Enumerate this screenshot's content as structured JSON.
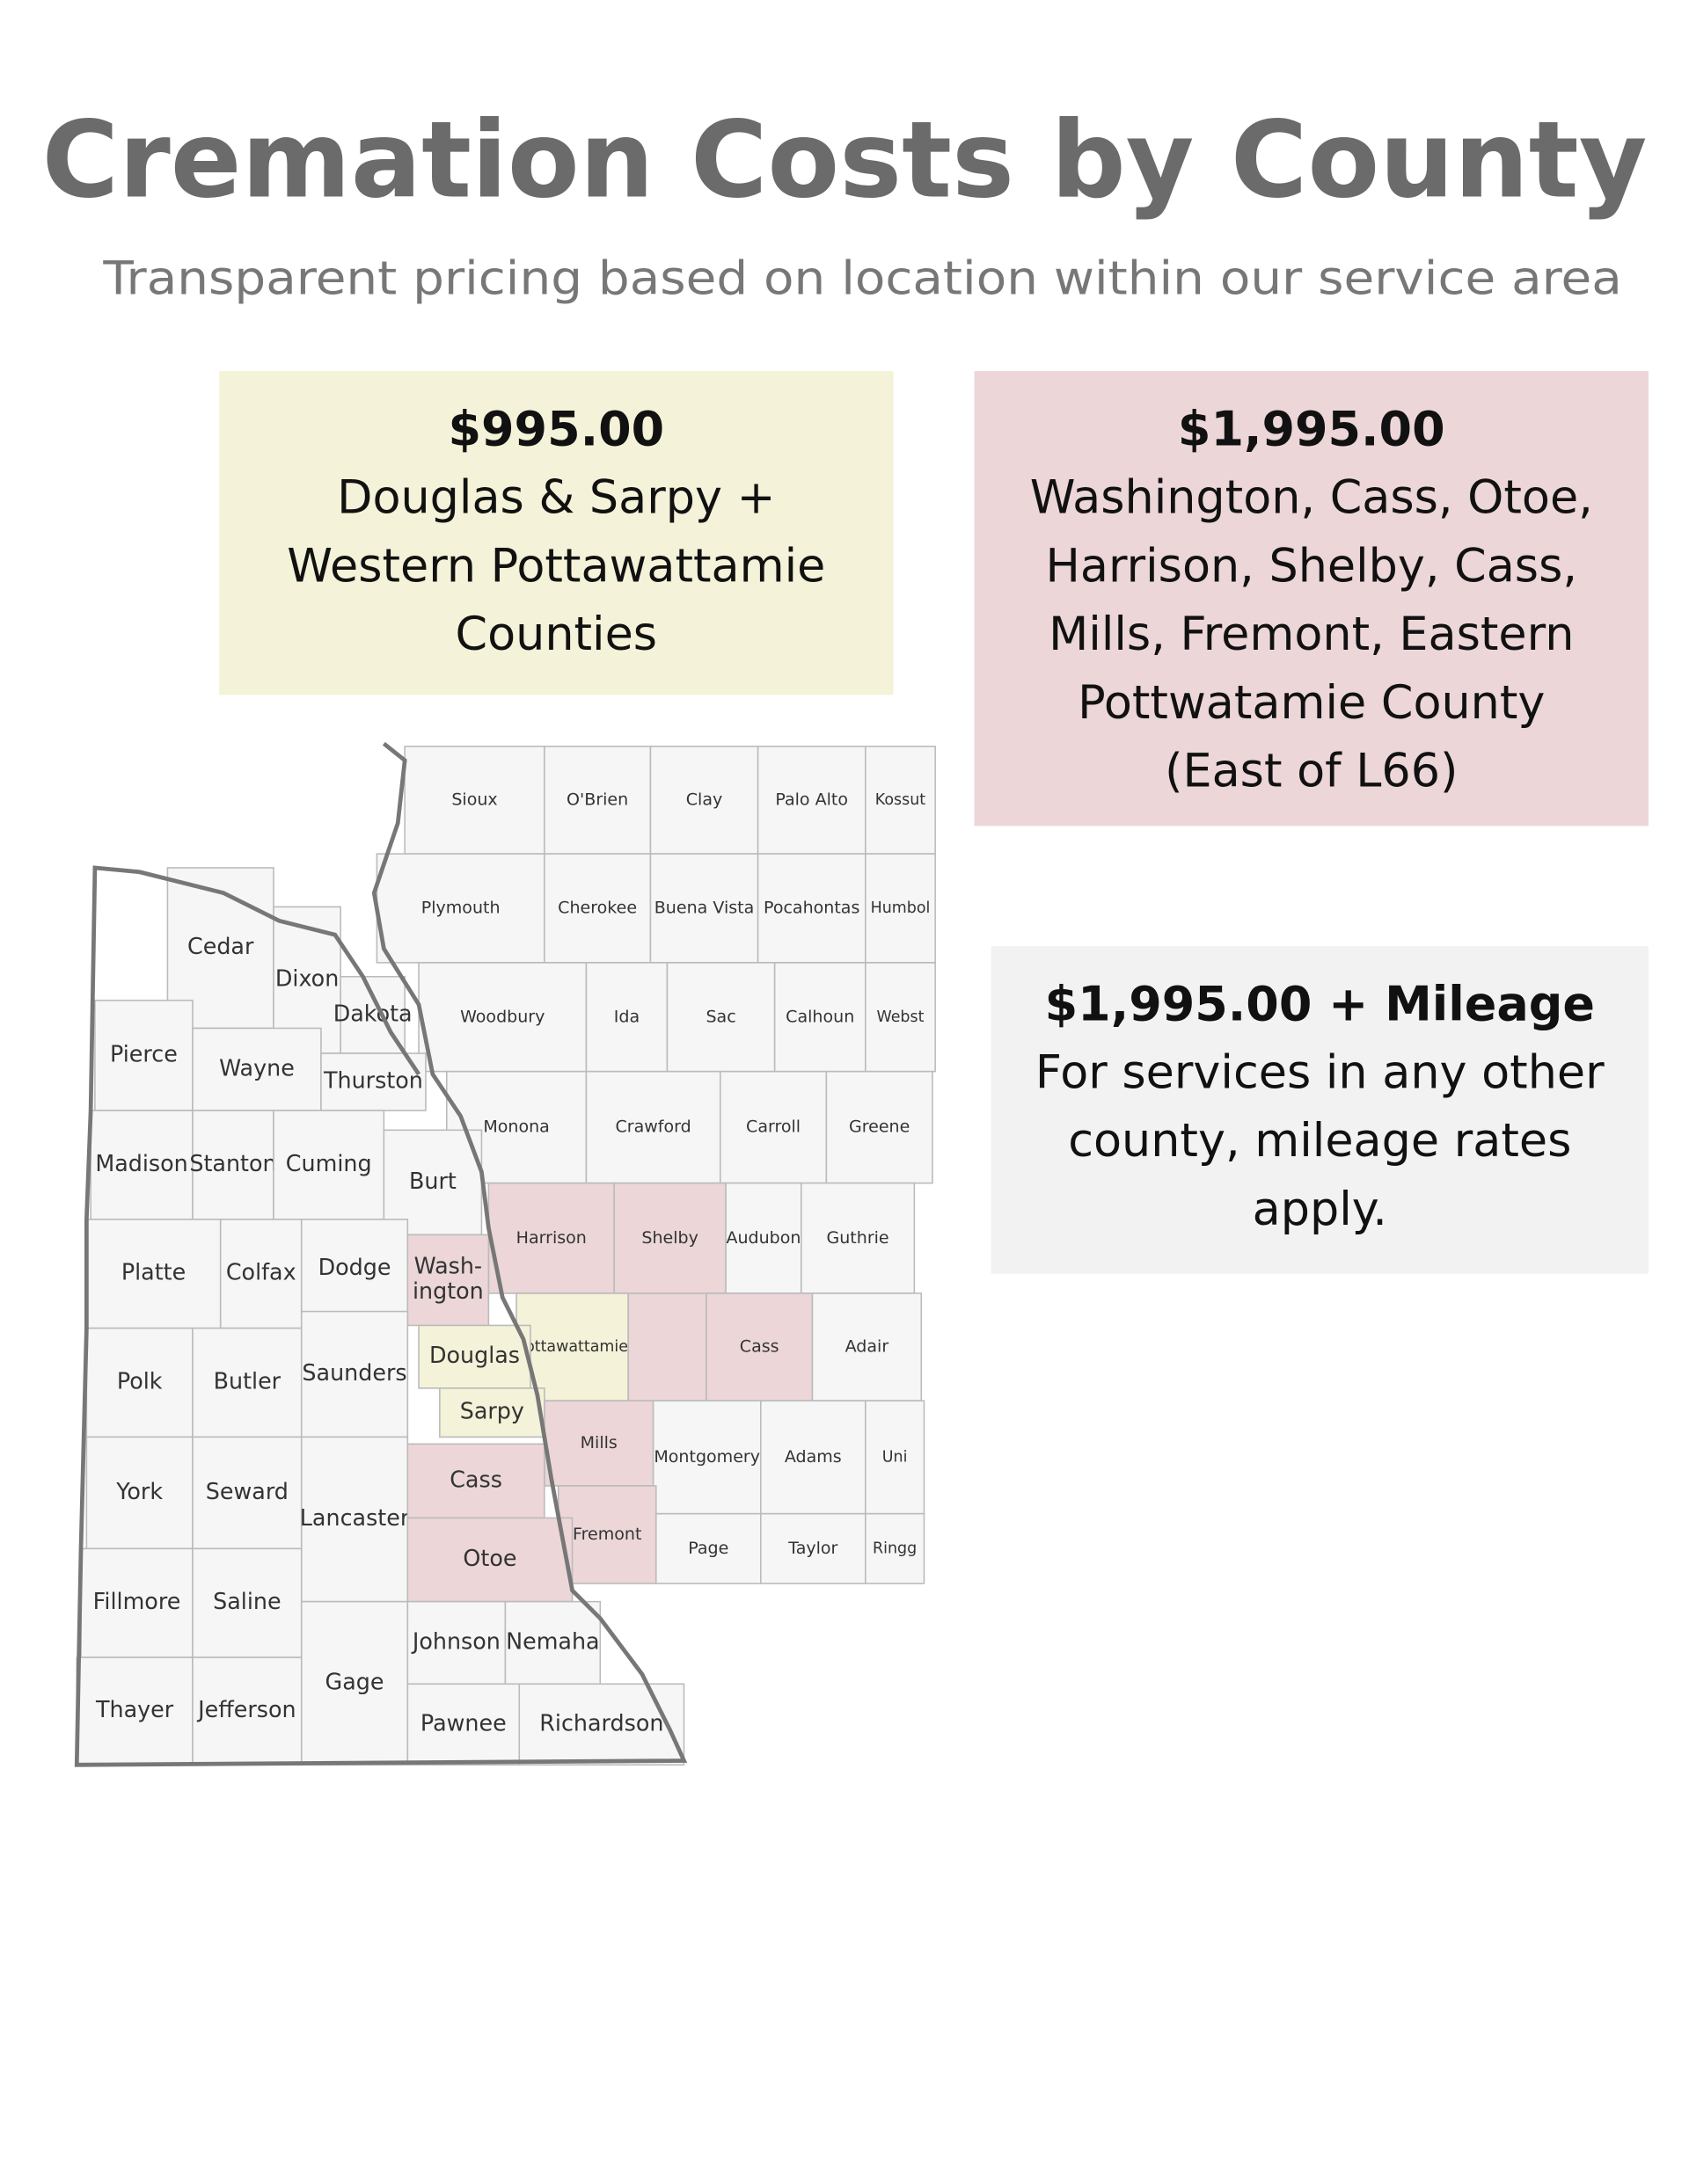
{
  "header": {
    "title": "Cremation Costs by County",
    "subtitle": "Transparent pricing based on location within our service area"
  },
  "price_boxes": [
    {
      "price": "$995.00",
      "lines": [
        "Douglas & Sarpy +",
        "Western Pottawattamie",
        "Counties"
      ],
      "color": "#f4f2d8"
    },
    {
      "price": "$1,995.00",
      "lines": [
        "Washington, Cass, Otoe,",
        "Harrison, Shelby, Cass,",
        "Mills, Fremont, Eastern",
        "Pottwatamie County",
        "(East of L66)"
      ],
      "color": "#ecd6d8"
    },
    {
      "price": "$1,995.00 + Mileage",
      "lines": [
        "For services in any other",
        "county, mileage rates",
        "apply."
      ],
      "color": "#f2f2f2"
    }
  ],
  "map": {
    "counties": [
      {
        "label": [
          "Sioux"
        ],
        "color": "#f6f6f6"
      },
      {
        "label": [
          "O'Brien"
        ],
        "color": "#f6f6f6"
      },
      {
        "label": [
          "Clay"
        ],
        "color": "#f6f6f6"
      },
      {
        "label": [
          "Palo Alto"
        ],
        "color": "#f6f6f6"
      },
      {
        "label": [
          "Kossut"
        ],
        "color": "#f6f6f6"
      },
      {
        "label": [
          "Plymouth"
        ],
        "color": "#f6f6f6"
      },
      {
        "label": [
          "Cherokee"
        ],
        "color": "#f6f6f6"
      },
      {
        "label": [
          "Buena Vista"
        ],
        "color": "#f6f6f6"
      },
      {
        "label": [
          "Pocahontas"
        ],
        "color": "#f6f6f6"
      },
      {
        "label": [
          "Humbol"
        ],
        "color": "#f6f6f6"
      },
      {
        "label": [
          "Woodbury"
        ],
        "color": "#f6f6f6"
      },
      {
        "label": [
          "Ida"
        ],
        "color": "#f6f6f6"
      },
      {
        "label": [
          "Sac"
        ],
        "color": "#f6f6f6"
      },
      {
        "label": [
          "Calhoun"
        ],
        "color": "#f6f6f6"
      },
      {
        "label": [
          "Webst"
        ],
        "color": "#f6f6f6"
      },
      {
        "label": [
          "Monona"
        ],
        "color": "#f6f6f6"
      },
      {
        "label": [
          "Crawford"
        ],
        "color": "#f6f6f6"
      },
      {
        "label": [
          "Carroll"
        ],
        "color": "#f6f6f6"
      },
      {
        "label": [
          "Greene"
        ],
        "color": "#f6f6f6"
      },
      {
        "label": [
          "Harrison"
        ],
        "color": "#ecd6d8"
      },
      {
        "label": [
          "Shelby"
        ],
        "color": "#ecd6d8"
      },
      {
        "label": [
          "Audubon"
        ],
        "color": "#f6f6f6"
      },
      {
        "label": [
          "Guthrie"
        ],
        "color": "#f6f6f6"
      },
      {
        "label": [
          "Pottawattamie"
        ],
        "color": "#f4f2d8"
      },
      {
        "label": [
          "Cass"
        ],
        "color": "#ecd6d8"
      },
      {
        "label": [
          "Adair"
        ],
        "color": "#f6f6f6"
      },
      {
        "label": [
          "Mills"
        ],
        "color": "#ecd6d8"
      },
      {
        "label": [
          "Montgomery"
        ],
        "color": "#f6f6f6"
      },
      {
        "label": [
          "Adams"
        ],
        "color": "#f6f6f6"
      },
      {
        "label": [
          "Uni"
        ],
        "color": "#f6f6f6"
      },
      {
        "label": [
          "Fremont"
        ],
        "color": "#ecd6d8"
      },
      {
        "label": [
          "Page"
        ],
        "color": "#f6f6f6"
      },
      {
        "label": [
          "Taylor"
        ],
        "color": "#f6f6f6"
      },
      {
        "label": [
          "Ringg"
        ],
        "color": "#f6f6f6"
      },
      {
        "label": [
          "Cedar"
        ],
        "color": "#f6f6f6"
      },
      {
        "label": [
          "Dixon"
        ],
        "color": "#f6f6f6"
      },
      {
        "label": [
          "Dakota"
        ],
        "color": "#f6f6f6"
      },
      {
        "label": [
          "Pierce"
        ],
        "color": "#f6f6f6"
      },
      {
        "label": [
          "Wayne"
        ],
        "color": "#f6f6f6"
      },
      {
        "label": [
          "Thurston"
        ],
        "color": "#f6f6f6"
      },
      {
        "label": [
          "Madison"
        ],
        "color": "#f6f6f6"
      },
      {
        "label": [
          "Stanton"
        ],
        "color": "#f6f6f6"
      },
      {
        "label": [
          "Cuming"
        ],
        "color": "#f6f6f6"
      },
      {
        "label": [
          "Burt"
        ],
        "color": "#f6f6f6"
      },
      {
        "label": [
          "Platte"
        ],
        "color": "#f6f6f6"
      },
      {
        "label": [
          "Colfax"
        ],
        "color": "#f6f6f6"
      },
      {
        "label": [
          "Dodge"
        ],
        "color": "#f6f6f6"
      },
      {
        "label": [
          "Wash-",
          "ington"
        ],
        "color": "#ecd6d8"
      },
      {
        "label": [
          "Polk"
        ],
        "color": "#f6f6f6"
      },
      {
        "label": [
          "Butler"
        ],
        "color": "#f6f6f6"
      },
      {
        "label": [
          "Saunders"
        ],
        "color": "#f6f6f6"
      },
      {
        "label": [
          "Douglas"
        ],
        "color": "#f4f2d8"
      },
      {
        "label": [
          "Sarpy"
        ],
        "color": "#f4f2d8"
      },
      {
        "label": [
          "York"
        ],
        "color": "#f6f6f6"
      },
      {
        "label": [
          "Seward"
        ],
        "color": "#f6f6f6"
      },
      {
        "label": [
          "Lancaster"
        ],
        "color": "#f6f6f6"
      },
      {
        "label": [
          "Cass"
        ],
        "color": "#ecd6d8"
      },
      {
        "label": [
          "Otoe"
        ],
        "color": "#ecd6d8"
      },
      {
        "label": [
          "Fillmore"
        ],
        "color": "#f6f6f6"
      },
      {
        "label": [
          "Saline"
        ],
        "color": "#f6f6f6"
      },
      {
        "label": [
          "Gage"
        ],
        "color": "#f6f6f6"
      },
      {
        "label": [
          "Johnson"
        ],
        "color": "#f6f6f6"
      },
      {
        "label": [
          "Nemaha"
        ],
        "color": "#f6f6f6"
      },
      {
        "label": [
          "Thayer"
        ],
        "color": "#f6f6f6"
      },
      {
        "label": [
          "Jefferson"
        ],
        "color": "#f6f6f6"
      },
      {
        "label": [
          "Pawnee"
        ],
        "color": "#f6f6f6"
      },
      {
        "label": [
          "Richardson"
        ],
        "color": "#f6f6f6"
      }
    ]
  }
}
